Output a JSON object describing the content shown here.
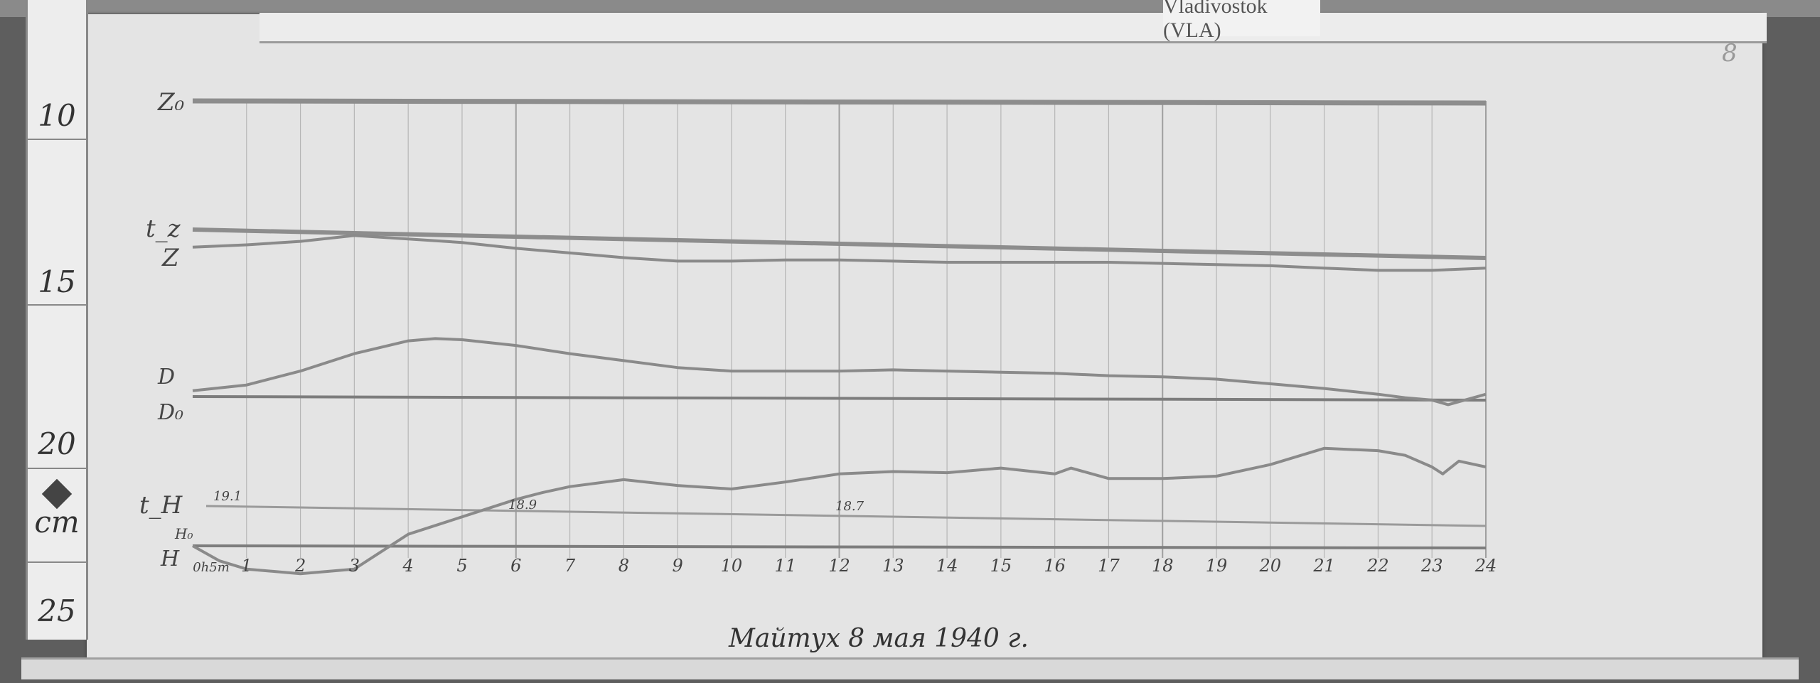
{
  "station_label": "Vladivostok (VLA)",
  "page_number": "8",
  "caption": "Майтух 8 мая 1940 г.",
  "ruler": {
    "labels": [
      "10",
      "15",
      "20",
      "cm",
      "25"
    ]
  },
  "colors": {
    "paper": "#e4e4e4",
    "trace": "#8a8a8a",
    "grid": "#b5b5b5"
  },
  "chart_data": {
    "type": "line",
    "xlabel": "",
    "x_ticks": [
      "0h5m",
      "1",
      "2",
      "3",
      "4",
      "5",
      "6",
      "7",
      "8",
      "9",
      "10",
      "11",
      "12",
      "13",
      "14",
      "15",
      "16",
      "17",
      "18",
      "19",
      "20",
      "21",
      "22",
      "23",
      "24"
    ],
    "xlim": [
      0,
      24
    ],
    "grid": true,
    "trace_labels": {
      "z0": "Z₀",
      "tz": "t_z",
      "z": "Z",
      "d": "D",
      "d0": "D₀",
      "th": "t_H",
      "h0": "H₀",
      "h": "H"
    },
    "annotations": {
      "th_start": "19.1",
      "th_6h": "18.9",
      "th_12h": "18.7"
    },
    "series": [
      {
        "name": "Z",
        "x": [
          0,
          1,
          2,
          3,
          4,
          5,
          6,
          7,
          8,
          9,
          10,
          11,
          12,
          13,
          14,
          15,
          16,
          17,
          18,
          19,
          20,
          21,
          22,
          23,
          24
        ],
        "values": [
          126,
          124,
          121,
          116,
          119,
          122,
          127,
          131,
          135,
          138,
          138,
          137,
          137,
          138,
          139,
          139,
          139,
          139,
          140,
          141,
          142,
          144,
          146,
          146,
          144
        ]
      },
      {
        "name": "D",
        "x": [
          0,
          1,
          2,
          3,
          4,
          4.5,
          5,
          6,
          7,
          8,
          9,
          10,
          11,
          12,
          13,
          14,
          15,
          16,
          17,
          18,
          19,
          20,
          21,
          22,
          22.5,
          23,
          23.3,
          24
        ],
        "values": [
          5,
          10,
          22,
          37,
          48,
          50,
          49,
          44,
          37,
          31,
          25,
          22,
          22,
          22,
          23,
          22,
          21,
          20,
          18,
          17,
          15,
          11,
          7,
          2,
          -1,
          -3,
          -7,
          2
        ]
      },
      {
        "name": "H",
        "x": [
          0,
          0.5,
          1,
          2,
          3,
          3.5,
          4,
          5,
          6,
          6.5,
          7,
          8,
          9,
          10,
          11,
          12,
          13,
          14,
          15,
          16,
          16.3,
          17,
          18,
          19,
          20,
          21,
          22,
          22.5,
          23,
          23.2,
          23.5,
          24
        ],
        "values": [
          0,
          -13,
          -20,
          -24,
          -20,
          -5,
          10,
          25,
          40,
          46,
          51,
          57,
          52,
          49,
          55,
          62,
          64,
          63,
          67,
          62,
          67,
          58,
          58,
          60,
          70,
          84,
          82,
          78,
          68,
          62,
          73,
          68
        ]
      }
    ]
  }
}
